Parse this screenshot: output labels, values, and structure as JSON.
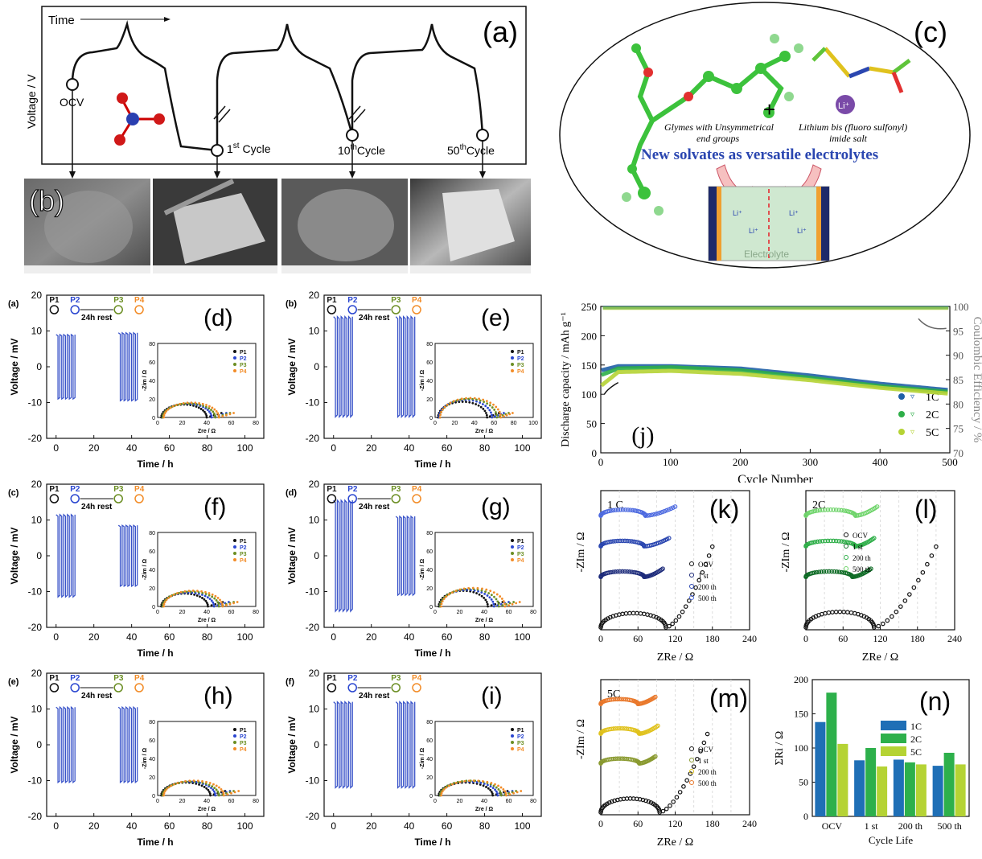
{
  "top": {
    "a": {
      "letter": "(a)",
      "time_label": "Time",
      "ylabel": "Voltage / V",
      "ocv": "OCV",
      "c1_num": "1",
      "c1_sup": "st",
      "c1_word": "Cycle",
      "c10_num": "10",
      "c10_sup": "th",
      "c10_word": "Cycle",
      "c50_num": "50",
      "c50_sup": "th",
      "c50_word": "Cycle"
    },
    "b": {
      "letter": "(b)"
    },
    "c": {
      "letter": "(c)",
      "glyme_text1": "Glymes with Unsymmetrical",
      "glyme_text2": "end groups",
      "plus": "+",
      "salt_text1": "Lithium bis (fluoro sulfonyl)",
      "salt_text2": "imide salt",
      "li_badge": "Li⁺",
      "headline": "New solvates as versatile electrolytes",
      "cell_label": "Electrolyte",
      "li_ion": "Li⁺"
    }
  },
  "chart_data": [
    {
      "id": "d",
      "type": "line",
      "letter": "(d)",
      "tag": "(a)",
      "xlabel": "Time / h",
      "ylabel": "Voltage / mV",
      "xlim": [
        -5,
        110
      ],
      "ylim": [
        -20,
        20
      ],
      "xticks": [
        0,
        20,
        40,
        60,
        80,
        100
      ],
      "yticks": [
        -20,
        -10,
        0,
        10,
        20
      ],
      "amp_block1": 9,
      "amp_block2": 9.5,
      "blocks": [
        [
          0,
          10
        ],
        [
          33,
          43
        ]
      ],
      "rest_label": "24h rest",
      "points": [
        "P1",
        "P2",
        "P3",
        "P4"
      ],
      "inset": {
        "xlabel": "Zre / Ω",
        "ylabel": "-Zim / Ω",
        "xlim": [
          0,
          80
        ],
        "ylim": [
          0,
          80
        ],
        "xticks": [
          0,
          20,
          40,
          60,
          80
        ],
        "yticks": [
          0,
          20,
          40,
          60,
          80
        ],
        "legend": [
          "P1",
          "P2",
          "P3",
          "P4"
        ],
        "arcs": [
          {
            "start": 3,
            "diam": 37,
            "height": 14
          },
          {
            "start": 4,
            "diam": 40,
            "height": 15
          },
          {
            "start": 4,
            "diam": 43,
            "height": 15
          },
          {
            "start": 5,
            "diam": 45,
            "height": 16
          }
        ]
      }
    },
    {
      "id": "e",
      "type": "line",
      "letter": "(e)",
      "tag": "(b)",
      "xlabel": "Time / h",
      "ylabel": "Voltage / mV",
      "xlim": [
        -5,
        110
      ],
      "ylim": [
        -20,
        20
      ],
      "xticks": [
        0,
        20,
        40,
        60,
        80,
        100
      ],
      "yticks": [
        -20,
        -10,
        0,
        10,
        20
      ],
      "amp_block1": 14,
      "amp_block2": 14,
      "blocks": [
        [
          0,
          10
        ],
        [
          33,
          43
        ]
      ],
      "rest_label": "24h rest",
      "points": [
        "P1",
        "P2",
        "P3",
        "P4"
      ],
      "inset": {
        "xlabel": "Zre / Ω",
        "ylabel": "-Zim / Ω",
        "xlim": [
          0,
          100
        ],
        "ylim": [
          0,
          80
        ],
        "xticks": [
          0,
          20,
          40,
          60,
          80,
          100
        ],
        "yticks": [
          0,
          20,
          40,
          60,
          80
        ],
        "legend": [
          "P1",
          "P2",
          "P3",
          "P4"
        ],
        "arcs": [
          {
            "start": 3,
            "diam": 50,
            "height": 17
          },
          {
            "start": 4,
            "diam": 54,
            "height": 19
          },
          {
            "start": 5,
            "diam": 58,
            "height": 20
          },
          {
            "start": 5,
            "diam": 62,
            "height": 21
          }
        ]
      }
    },
    {
      "id": "f",
      "type": "line",
      "letter": "(f)",
      "tag": "(c)",
      "xlabel": "Time / h",
      "ylabel": "Voltage / mV",
      "xlim": [
        -5,
        110
      ],
      "ylim": [
        -20,
        20
      ],
      "xticks": [
        0,
        20,
        40,
        60,
        80,
        100
      ],
      "yticks": [
        -20,
        -10,
        0,
        10,
        20
      ],
      "amp_block1": 11.5,
      "amp_block2": 8.5,
      "blocks": [
        [
          0,
          10
        ],
        [
          33,
          43
        ]
      ],
      "rest_label": "24h rest",
      "points": [
        "P1",
        "P2",
        "P3",
        "P4"
      ],
      "inset": {
        "xlabel": "Zre / Ω",
        "ylabel": "-Zim / Ω",
        "xlim": [
          0,
          80
        ],
        "ylim": [
          0,
          80
        ],
        "xticks": [
          0,
          20,
          40,
          60,
          80
        ],
        "yticks": [
          0,
          20,
          40,
          60,
          80
        ],
        "legend": [
          "P1",
          "P2",
          "P3",
          "P4"
        ],
        "arcs": [
          {
            "start": 3,
            "diam": 38,
            "height": 14
          },
          {
            "start": 4,
            "diam": 42,
            "height": 15
          },
          {
            "start": 4,
            "diam": 46,
            "height": 16
          },
          {
            "start": 5,
            "diam": 48,
            "height": 17
          }
        ]
      }
    },
    {
      "id": "g",
      "type": "line",
      "letter": "(g)",
      "tag": "(d)",
      "xlabel": "Time / h",
      "ylabel": "Voltage / mV",
      "xlim": [
        -5,
        110
      ],
      "ylim": [
        -20,
        20
      ],
      "xticks": [
        0,
        20,
        40,
        60,
        80,
        100
      ],
      "yticks": [
        -20,
        -10,
        0,
        10,
        20
      ],
      "amp_block1": 15.5,
      "amp_block2": 11,
      "blocks": [
        [
          0,
          10
        ],
        [
          33,
          43
        ]
      ],
      "rest_label": "24h rest",
      "points": [
        "P1",
        "P2",
        "P3",
        "P4"
      ],
      "inset": {
        "xlabel": "Zre / Ω",
        "ylabel": "-Zim / Ω",
        "xlim": [
          0,
          80
        ],
        "ylim": [
          0,
          80
        ],
        "xticks": [
          0,
          20,
          40,
          60,
          80
        ],
        "yticks": [
          0,
          20,
          40,
          60,
          80
        ],
        "legend": [
          "P1",
          "P2",
          "P3",
          "P4"
        ],
        "arcs": [
          {
            "start": 3,
            "diam": 40,
            "height": 17
          },
          {
            "start": 4,
            "diam": 44,
            "height": 18
          },
          {
            "start": 4,
            "diam": 48,
            "height": 19
          },
          {
            "start": 5,
            "diam": 52,
            "height": 20
          }
        ]
      }
    },
    {
      "id": "h",
      "type": "line",
      "letter": "(h)",
      "tag": "(e)",
      "xlabel": "Time / h",
      "ylabel": "Voltage / mV",
      "xlim": [
        -5,
        110
      ],
      "ylim": [
        -20,
        20
      ],
      "xticks": [
        0,
        20,
        40,
        60,
        80,
        100
      ],
      "yticks": [
        -20,
        -10,
        0,
        10,
        20
      ],
      "amp_block1": 10.5,
      "amp_block2": 10.5,
      "blocks": [
        [
          0,
          10
        ],
        [
          33,
          43
        ]
      ],
      "rest_label": "24h rest",
      "points": [
        "P1",
        "P2",
        "P3",
        "P4"
      ],
      "inset": {
        "xlabel": "Zre / Ω",
        "ylabel": "-Zim / Ω",
        "xlim": [
          0,
          80
        ],
        "ylim": [
          0,
          80
        ],
        "xticks": [
          0,
          20,
          40,
          60,
          80
        ],
        "yticks": [
          0,
          20,
          40,
          60,
          80
        ],
        "legend": [
          "P1",
          "P2",
          "P3",
          "P4"
        ],
        "arcs": [
          {
            "start": 3,
            "diam": 40,
            "height": 14
          },
          {
            "start": 4,
            "diam": 43,
            "height": 15
          },
          {
            "start": 4,
            "diam": 46,
            "height": 15
          },
          {
            "start": 5,
            "diam": 49,
            "height": 16
          }
        ]
      }
    },
    {
      "id": "i",
      "type": "line",
      "letter": "(i)",
      "tag": "(f)",
      "xlabel": "Time / h",
      "ylabel": "Voltage / mV",
      "xlim": [
        -5,
        110
      ],
      "ylim": [
        -20,
        20
      ],
      "xticks": [
        0,
        20,
        40,
        60,
        80,
        100
      ],
      "yticks": [
        -20,
        -10,
        0,
        10,
        20
      ],
      "amp_block1": 12,
      "amp_block2": 12,
      "blocks": [
        [
          0,
          10
        ],
        [
          33,
          43
        ]
      ],
      "rest_label": "24h rest",
      "points": [
        "P1",
        "P2",
        "P3",
        "P4"
      ],
      "inset": {
        "xlabel": "Zre / Ω",
        "ylabel": "-Zim / Ω",
        "xlim": [
          0,
          80
        ],
        "ylim": [
          0,
          80
        ],
        "xticks": [
          0,
          20,
          40,
          60,
          80
        ],
        "yticks": [
          0,
          20,
          40,
          60,
          80
        ],
        "legend": [
          "P1",
          "P2",
          "P3",
          "P4"
        ],
        "arcs": [
          {
            "start": 3,
            "diam": 44,
            "height": 14
          },
          {
            "start": 4,
            "diam": 47,
            "height": 15
          },
          {
            "start": 4,
            "diam": 50,
            "height": 16
          },
          {
            "start": 5,
            "diam": 53,
            "height": 16
          }
        ]
      }
    },
    {
      "id": "j",
      "type": "scatter",
      "letter": "(j)",
      "xlabel": "Cycle Number",
      "ylabel": "Discharge capacity / mAh g⁻¹",
      "y2label": "Coulombic Efficiency / %",
      "xlim": [
        0,
        500
      ],
      "ylim": [
        0,
        250
      ],
      "y2lim": [
        70,
        100
      ],
      "xticks": [
        0,
        100,
        200,
        300,
        400,
        500
      ],
      "yticks": [
        0,
        50,
        100,
        150,
        200,
        250
      ],
      "y2ticks": [
        70,
        75,
        80,
        85,
        90,
        95,
        100
      ],
      "legend_position": "right",
      "series": [
        {
          "name": "1C",
          "color": "#1f5fa6",
          "capacity": [
            [
              1,
              141
            ],
            [
              25,
              148
            ],
            [
              100,
              148
            ],
            [
              200,
              144
            ],
            [
              300,
              132
            ],
            [
              400,
              118
            ],
            [
              500,
              107
            ]
          ],
          "ce": 99.8
        },
        {
          "name": "2C",
          "color": "#2eae48",
          "capacity": [
            [
              1,
              133
            ],
            [
              25,
              144
            ],
            [
              100,
              146
            ],
            [
              200,
              141
            ],
            [
              300,
              128
            ],
            [
              400,
              114
            ],
            [
              500,
              104
            ]
          ],
          "ce": 99.7
        },
        {
          "name": "5C",
          "color": "#b5d334",
          "capacity": [
            [
              1,
              115
            ],
            [
              25,
              138
            ],
            [
              100,
              140
            ],
            [
              200,
              135
            ],
            [
              300,
              124
            ],
            [
              400,
              111
            ],
            [
              500,
              101
            ]
          ],
          "ce": 99.6
        }
      ]
    },
    {
      "id": "k",
      "type": "scatter",
      "letter": "(k)",
      "tag": "1 C",
      "xlabel": "ZRe / Ω",
      "ylabel": "-ZIm / Ω",
      "xlim": [
        0,
        240
      ],
      "xticks": [
        0,
        60,
        120,
        180,
        240
      ],
      "legend": [
        "OCV",
        "1 st",
        "200 th",
        "500 th"
      ],
      "curves": [
        {
          "name": "OCV",
          "color": "#111111",
          "arc_end": 105,
          "arc_h": 0.32,
          "tail_end": 180,
          "tail_h": 1.0
        },
        {
          "name": "1 st",
          "color": "#1c2a7a",
          "arc_end": 70,
          "arc_h": 0.55,
          "tail_end": 100,
          "tail_h": 0.45
        },
        {
          "name": "200 th",
          "color": "#2a46b0",
          "arc_end": 70,
          "arc_h": 0.55,
          "tail_end": 110,
          "tail_h": 0.45
        },
        {
          "name": "500 th",
          "color": "#4d6ae0",
          "arc_end": 72,
          "arc_h": 0.6,
          "tail_end": 120,
          "tail_h": 0.5
        }
      ]
    },
    {
      "id": "l",
      "type": "scatter",
      "letter": "(l)",
      "tag": "2C",
      "xlabel": "ZRe / Ω",
      "ylabel": "-ZIm / Ω",
      "xlim": [
        0,
        240
      ],
      "xticks": [
        0,
        60,
        120,
        180,
        240
      ],
      "legend": [
        "OCV",
        "1 st",
        "200 th",
        "500 th"
      ],
      "curves": [
        {
          "name": "OCV",
          "color": "#111111",
          "arc_end": 110,
          "arc_h": 0.35,
          "tail_end": 210,
          "tail_h": 1.0
        },
        {
          "name": "1 st",
          "color": "#0e6b25",
          "arc_end": 75,
          "arc_h": 0.55,
          "tail_end": 105,
          "tail_h": 0.45
        },
        {
          "name": "200 th",
          "color": "#2eae48",
          "arc_end": 80,
          "arc_h": 0.55,
          "tail_end": 110,
          "tail_h": 0.45
        },
        {
          "name": "500 th",
          "color": "#6fd46b",
          "arc_end": 80,
          "arc_h": 0.6,
          "tail_end": 115,
          "tail_h": 0.5
        }
      ]
    },
    {
      "id": "m",
      "type": "scatter",
      "letter": "(m)",
      "tag": "5C",
      "xlabel": "ZRe / Ω",
      "ylabel": "-ZIm / Ω",
      "xlim": [
        0,
        240
      ],
      "xticks": [
        0,
        60,
        120,
        180,
        240
      ],
      "legend": [
        "OCV",
        "1 st",
        "200 th",
        "500 th"
      ],
      "curves": [
        {
          "name": "OCV",
          "color": "#111111",
          "arc_end": 95,
          "arc_h": 0.32,
          "tail_end": 172,
          "tail_h": 1.0
        },
        {
          "name": "1 st",
          "color": "#8a9a30",
          "arc_end": 62,
          "arc_h": 0.5,
          "tail_end": 88,
          "tail_h": 0.4
        },
        {
          "name": "200 th",
          "color": "#e0c21e",
          "arc_end": 62,
          "arc_h": 0.55,
          "tail_end": 92,
          "tail_h": 0.45
        },
        {
          "name": "500 th",
          "color": "#e9782b",
          "arc_end": 60,
          "arc_h": 0.5,
          "tail_end": 88,
          "tail_h": 0.4
        }
      ]
    },
    {
      "id": "n",
      "type": "bar",
      "letter": "(n)",
      "xlabel": "Cycle Life",
      "ylabel": "ΣRi / Ω",
      "ylim": [
        0,
        200
      ],
      "yticks": [
        0,
        50,
        100,
        150,
        200
      ],
      "categories": [
        "OCV",
        "1 st",
        "200 th",
        "500 th"
      ],
      "series": [
        {
          "name": "1C",
          "color": "#1f6fb6",
          "values": [
            138,
            82,
            83,
            74
          ]
        },
        {
          "name": "2C",
          "color": "#2db04b",
          "values": [
            181,
            100,
            79,
            93
          ]
        },
        {
          "name": "5C",
          "color": "#b5d334",
          "values": [
            106,
            73,
            76,
            76
          ]
        }
      ]
    }
  ]
}
